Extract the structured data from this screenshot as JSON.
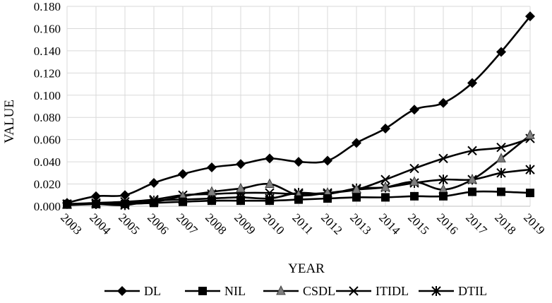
{
  "chart_data": {
    "type": "line",
    "xlabel": "YEAR",
    "ylabel": "VALUE",
    "categories": [
      "2003",
      "2004",
      "2005",
      "2006",
      "2007",
      "2008",
      "2009",
      "2010",
      "2011",
      "2012",
      "2013",
      "2014",
      "2015",
      "2016",
      "2017",
      "2018",
      "2019"
    ],
    "ylim": [
      0,
      0.18
    ],
    "ytick_step": 0.02,
    "ytick_labels": [
      "0.000",
      "0.020",
      "0.040",
      "0.060",
      "0.080",
      "0.100",
      "0.120",
      "0.140",
      "0.160",
      "0.180"
    ],
    "grid": true,
    "legend_position": "bottom",
    "series": [
      {
        "name": "DL",
        "marker": "diamond",
        "color": "#000000",
        "values": [
          0.003,
          0.009,
          0.01,
          0.021,
          0.029,
          0.035,
          0.038,
          0.043,
          0.04,
          0.041,
          0.057,
          0.07,
          0.087,
          0.093,
          0.111,
          0.139,
          0.171
        ]
      },
      {
        "name": "NIL",
        "marker": "square",
        "color": "#000000",
        "values": [
          0.002,
          0.002,
          0.002,
          0.003,
          0.004,
          0.005,
          0.005,
          0.005,
          0.006,
          0.007,
          0.008,
          0.008,
          0.009,
          0.009,
          0.013,
          0.013,
          0.012
        ]
      },
      {
        "name": "CSDL",
        "marker": "triangle",
        "color": "#7f7f7f",
        "values": [
          0.001,
          0.002,
          0.003,
          0.004,
          0.009,
          0.013,
          0.016,
          0.02,
          0.01,
          0.012,
          0.015,
          0.017,
          0.022,
          0.015,
          0.024,
          0.043,
          0.064
        ]
      },
      {
        "name": "ITIDL",
        "marker": "x",
        "color": "#000000",
        "values": [
          0.002,
          0.003,
          0.004,
          0.006,
          0.01,
          0.011,
          0.012,
          0.012,
          0.011,
          0.012,
          0.015,
          0.024,
          0.034,
          0.043,
          0.05,
          0.053,
          0.061
        ]
      },
      {
        "name": "DTIL",
        "marker": "star",
        "color": "#000000",
        "values": [
          0.002,
          0.002,
          0.001,
          0.005,
          0.006,
          0.007,
          0.008,
          0.007,
          0.012,
          0.011,
          0.016,
          0.017,
          0.021,
          0.024,
          0.024,
          0.03,
          0.033
        ]
      }
    ]
  }
}
